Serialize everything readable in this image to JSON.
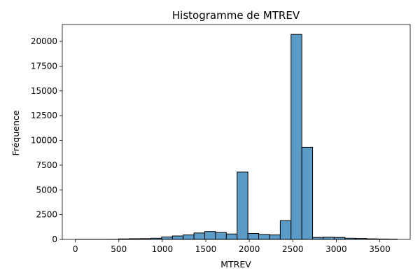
{
  "chart_data": {
    "type": "bar",
    "title": "Histogramme de MTREV",
    "xlabel": "MTREV",
    "ylabel": "Fréquence",
    "bar_color": "#5b9bc8",
    "edge_color": "#000000",
    "grid": false,
    "xlim": [
      -150,
      3850
    ],
    "ylim": [
      0,
      21700
    ],
    "xticks": [
      0,
      500,
      1000,
      1500,
      2000,
      2500,
      3000,
      3500
    ],
    "xtick_labels": [
      "0",
      "500",
      "1000",
      "1500",
      "2000",
      "2500",
      "3000",
      "3500"
    ],
    "yticks": [
      0,
      2500,
      5000,
      7500,
      10000,
      12500,
      15000,
      17500,
      20000
    ],
    "ytick_labels": [
      "0",
      "2500",
      "5000",
      "7500",
      "10000",
      "12500",
      "15000",
      "17500",
      "20000"
    ],
    "bins": [
      {
        "x0": 0,
        "x1": 124,
        "count": 5
      },
      {
        "x0": 124,
        "x1": 248,
        "count": 5
      },
      {
        "x0": 248,
        "x1": 372,
        "count": 5
      },
      {
        "x0": 372,
        "x1": 496,
        "count": 10
      },
      {
        "x0": 496,
        "x1": 620,
        "count": 50
      },
      {
        "x0": 620,
        "x1": 744,
        "count": 70
      },
      {
        "x0": 744,
        "x1": 868,
        "count": 80
      },
      {
        "x0": 868,
        "x1": 992,
        "count": 120
      },
      {
        "x0": 992,
        "x1": 1116,
        "count": 250
      },
      {
        "x0": 1116,
        "x1": 1240,
        "count": 350
      },
      {
        "x0": 1240,
        "x1": 1364,
        "count": 450
      },
      {
        "x0": 1364,
        "x1": 1488,
        "count": 650
      },
      {
        "x0": 1488,
        "x1": 1612,
        "count": 800
      },
      {
        "x0": 1612,
        "x1": 1736,
        "count": 700
      },
      {
        "x0": 1736,
        "x1": 1860,
        "count": 550
      },
      {
        "x0": 1860,
        "x1": 1984,
        "count": 6800
      },
      {
        "x0": 1984,
        "x1": 2108,
        "count": 600
      },
      {
        "x0": 2108,
        "x1": 2232,
        "count": 500
      },
      {
        "x0": 2232,
        "x1": 2356,
        "count": 450
      },
      {
        "x0": 2356,
        "x1": 2480,
        "count": 1900
      },
      {
        "x0": 2480,
        "x1": 2604,
        "count": 20700
      },
      {
        "x0": 2604,
        "x1": 2728,
        "count": 9300
      },
      {
        "x0": 2728,
        "x1": 2852,
        "count": 200
      },
      {
        "x0": 2852,
        "x1": 2976,
        "count": 220
      },
      {
        "x0": 2976,
        "x1": 3100,
        "count": 200
      },
      {
        "x0": 3100,
        "x1": 3224,
        "count": 120
      },
      {
        "x0": 3224,
        "x1": 3348,
        "count": 100
      },
      {
        "x0": 3348,
        "x1": 3472,
        "count": 60
      },
      {
        "x0": 3472,
        "x1": 3596,
        "count": 40
      },
      {
        "x0": 3596,
        "x1": 3700,
        "count": 30
      }
    ]
  }
}
